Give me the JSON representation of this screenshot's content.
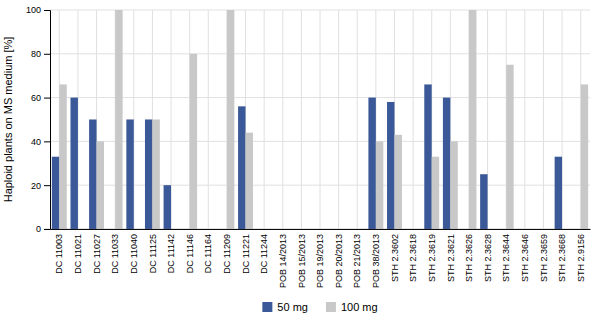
{
  "chart_data": {
    "type": "bar",
    "categories": [
      "DC 11003",
      "DC 11021",
      "DC 11027",
      "DC 11033",
      "DC 11040",
      "DC 11125",
      "DC 11142",
      "DC 11146",
      "DC 11164",
      "DC 11209",
      "DC 11221",
      "DC 11244",
      "POB 14/2013",
      "POB 15/2013",
      "POB 19/2013",
      "POB 20/2013",
      "POB 21/2013",
      "POB 38/2013",
      "STH 2.3602",
      "STH 2.3618",
      "STH 2.3619",
      "STH 2.3621",
      "STH 2.3626",
      "STH 2.3628",
      "STH 2.3644",
      "STH 2.3646",
      "STH 2.3659",
      "STH 2.3668",
      "STH 2.9156"
    ],
    "series": [
      {
        "name": "50 mg",
        "color": "#3b5998",
        "values": [
          33,
          60,
          50,
          0,
          50,
          50,
          20,
          0,
          0,
          0,
          56,
          0,
          0,
          0,
          0,
          0,
          0,
          60,
          58,
          0,
          66,
          60,
          0,
          25,
          0,
          0,
          0,
          33,
          0
        ]
      },
      {
        "name": "100 mg",
        "color": "#c8c8c8",
        "values": [
          66,
          0,
          40,
          100,
          0,
          50,
          0,
          80,
          0,
          100,
          44,
          0,
          0,
          0,
          0,
          0,
          0,
          40,
          43,
          0,
          33,
          40,
          100,
          0,
          75,
          0,
          0,
          0,
          66
        ]
      }
    ],
    "y_label": "Haploid plants on MS medium [%]",
    "ylim": [
      0,
      100
    ],
    "yticks": [
      0,
      20,
      40,
      60,
      80,
      100
    ],
    "grid": true,
    "legend": "bottom"
  }
}
